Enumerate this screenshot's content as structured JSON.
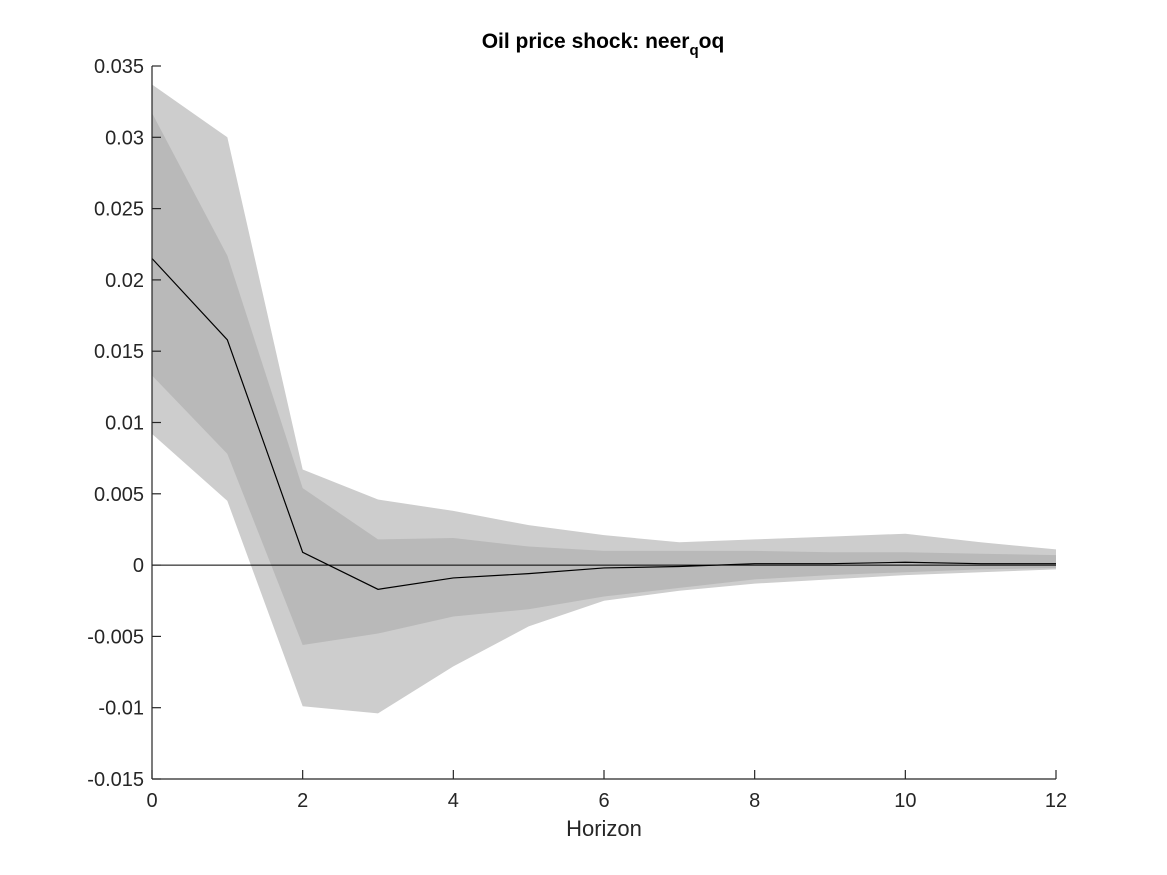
{
  "chart_data": {
    "type": "line",
    "title": "Oil price shock: neer",
    "title_subscript": "q",
    "title_suffix": "oq",
    "xlabel": "Horizon",
    "ylabel": "",
    "xlim": [
      0,
      12
    ],
    "ylim": [
      -0.015,
      0.035
    ],
    "xticks": [
      0,
      2,
      4,
      6,
      8,
      10,
      12
    ],
    "xtick_labels": [
      "0",
      "2",
      "4",
      "6",
      "8",
      "10",
      "12"
    ],
    "yticks": [
      -0.015,
      -0.01,
      -0.005,
      0,
      0.005,
      0.01,
      0.015,
      0.02,
      0.025,
      0.03,
      0.035
    ],
    "ytick_labels": [
      "-0.015",
      "-0.01",
      "-0.005",
      "0",
      "0.005",
      "0.01",
      "0.015",
      "0.02",
      "0.025",
      "0.03",
      "0.035"
    ],
    "grid": false,
    "x": [
      0,
      1,
      2,
      3,
      4,
      5,
      6,
      7,
      8,
      9,
      10,
      11,
      12
    ],
    "bands": [
      {
        "lower": [
          0.0092,
          0.0045,
          -0.0099,
          -0.0104,
          -0.0071,
          -0.0043,
          -0.0025,
          -0.0018,
          -0.0013,
          -0.001,
          -0.0007,
          -0.0005,
          -0.0003
        ],
        "upper": [
          0.0337,
          0.03,
          0.0067,
          0.0046,
          0.0038,
          0.0028,
          0.0021,
          0.0016,
          0.0018,
          0.002,
          0.0022,
          0.0016,
          0.0011
        ],
        "color": "#cdcdcd"
      },
      {
        "lower": [
          0.0133,
          0.0078,
          -0.0056,
          -0.0048,
          -0.0036,
          -0.0031,
          -0.0022,
          -0.0016,
          -0.001,
          -0.0007,
          -0.0005,
          -0.0003,
          -0.0002
        ],
        "upper": [
          0.0317,
          0.0217,
          0.0054,
          0.0018,
          0.0019,
          0.0013,
          0.001,
          0.001,
          0.001,
          0.0009,
          0.0009,
          0.0008,
          0.0007
        ],
        "color": "#b9b9b9"
      }
    ],
    "series": [
      {
        "values": [
          0.0215,
          0.0158,
          0.0009,
          -0.0017,
          -0.0009,
          -0.0006,
          -0.0002,
          -0.0001,
          0.0001,
          0.0001,
          0.0002,
          0.0001,
          0.0001
        ],
        "color": "#000000"
      }
    ],
    "zero_line": true,
    "colors": {
      "axis": "#262626",
      "line": "#000000",
      "zero_line": "#000000"
    }
  }
}
